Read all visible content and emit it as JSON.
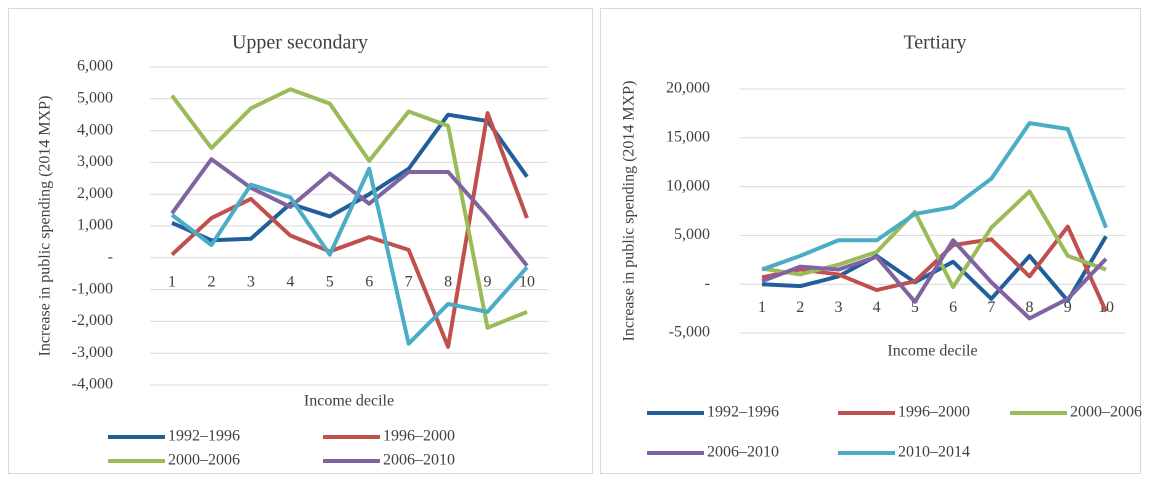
{
  "chart_data": [
    {
      "type": "line",
      "title": "Upper secondary",
      "x_label": "Income decile",
      "y_label": "Increase in public spending  (2014 MXP)",
      "categories": [
        "1",
        "2",
        "3",
        "4",
        "5",
        "6",
        "7",
        "8",
        "9",
        "10"
      ],
      "ylim": [
        -4000,
        6000
      ],
      "yticks": [
        {
          "value": -4000,
          "label": "-4,000"
        },
        {
          "value": -3000,
          "label": "-3,000"
        },
        {
          "value": -2000,
          "label": "-2,000"
        },
        {
          "value": -1000,
          "label": "-1,000"
        },
        {
          "value": 0,
          "label": "-"
        },
        {
          "value": 1000,
          "label": "1,000"
        },
        {
          "value": 2000,
          "label": "2,000"
        },
        {
          "value": 3000,
          "label": "3,000"
        },
        {
          "value": 4000,
          "label": "4,000"
        },
        {
          "value": 5000,
          "label": "5,000"
        },
        {
          "value": 6000,
          "label": "6,000"
        }
      ],
      "grid": true,
      "series": [
        {
          "name": "1992–1996",
          "color": "#215f9a",
          "values": [
            1100,
            550,
            600,
            1700,
            1300,
            2000,
            2800,
            4500,
            4300,
            2550
          ]
        },
        {
          "name": "1996–2000",
          "color": "#c0504d",
          "values": [
            100,
            1250,
            1850,
            700,
            200,
            650,
            250,
            -2800,
            4550,
            1250
          ]
        },
        {
          "name": "2000–2006",
          "color": "#9bbb59",
          "values": [
            5100,
            3450,
            4700,
            5300,
            4850,
            3050,
            4600,
            4150,
            -2200,
            -1700
          ]
        },
        {
          "name": "2006–2010",
          "color": "#8064a2",
          "values": [
            1400,
            3100,
            2200,
            1600,
            2650,
            1700,
            2700,
            2700,
            1300,
            -250
          ]
        },
        {
          "color": "#4bacc6",
          "values": [
            1350,
            400,
            2300,
            1900,
            100,
            2800,
            -2700,
            -1450,
            -1700,
            -300
          ]
        }
      ]
    },
    {
      "type": "line",
      "title": "Tertiary",
      "x_label": "Income decile",
      "y_label": "Increase in public spending  (2014 MXP)",
      "categories": [
        "1",
        "2",
        "3",
        "4",
        "5",
        "6",
        "7",
        "8",
        "9",
        "10"
      ],
      "ylim": [
        -5000,
        20000
      ],
      "yticks": [
        {
          "value": -5000,
          "label": "-5,000"
        },
        {
          "value": 0,
          "label": "-"
        },
        {
          "value": 5000,
          "label": "5,000"
        },
        {
          "value": 10000,
          "label": "10,000"
        },
        {
          "value": 15000,
          "label": "15,000"
        },
        {
          "value": 20000,
          "label": "20,000"
        }
      ],
      "grid": true,
      "series": [
        {
          "name": "1992–1996",
          "color": "#215f9a",
          "values": [
            0,
            -200,
            800,
            2900,
            200,
            2300,
            -1500,
            2900,
            -1700,
            4900
          ]
        },
        {
          "name": "1996–2000",
          "color": "#c0504d",
          "values": [
            700,
            1500,
            1000,
            -600,
            300,
            4000,
            4600,
            800,
            5900,
            -2800
          ]
        },
        {
          "name": "2000–2006",
          "color": "#9bbb59",
          "values": [
            1600,
            1000,
            2000,
            3300,
            7400,
            -300,
            5800,
            9500,
            2900,
            1500
          ]
        },
        {
          "name": "2006–2010",
          "color": "#8064a2",
          "values": [
            300,
            1800,
            1500,
            2800,
            -1800,
            4500,
            200,
            -3500,
            -1500,
            2600
          ]
        },
        {
          "name": "2010–2014",
          "color": "#4bacc6",
          "values": [
            1500,
            2900,
            4500,
            4500,
            7200,
            7900,
            10800,
            16500,
            15900,
            5800
          ]
        }
      ]
    }
  ]
}
